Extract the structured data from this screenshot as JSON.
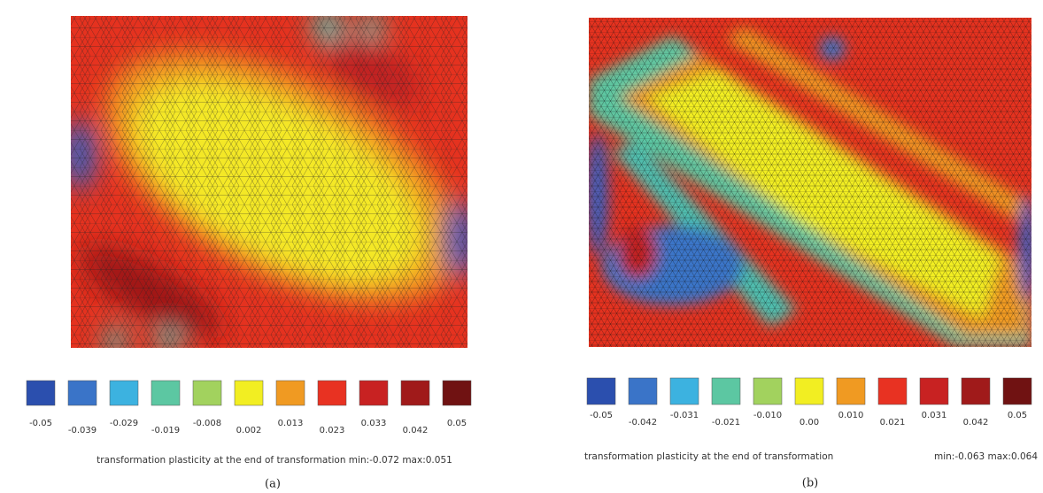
{
  "panels": [
    {
      "legend": [
        {
          "label": "-0.05",
          "color": "#2b4fae"
        },
        {
          "label": "-0.039",
          "color": "#3a74c8"
        },
        {
          "label": "-0.029",
          "color": "#3cb2e0"
        },
        {
          "label": "-0.019",
          "color": "#5cc7a2"
        },
        {
          "label": "-0.008",
          "color": "#a2d25e"
        },
        {
          "label": "0.002",
          "color": "#f2ee22"
        },
        {
          "label": "0.013",
          "color": "#f09a22"
        },
        {
          "label": "0.023",
          "color": "#e83222"
        },
        {
          "label": "0.033",
          "color": "#c82222"
        },
        {
          "label": "0.042",
          "color": "#a01a1a"
        },
        {
          "label": "0.05",
          "color": "#701212"
        }
      ],
      "caption": "transformation plasticity at the end of transformation  min:-0.072 max:0.051",
      "label": "(a)"
    },
    {
      "legend": [
        {
          "label": "-0.05",
          "color": "#2b4fae"
        },
        {
          "label": "-0.042",
          "color": "#3a74c8"
        },
        {
          "label": "-0.031",
          "color": "#3cb2e0"
        },
        {
          "label": "-0.021",
          "color": "#5cc7a2"
        },
        {
          "label": "-0.010",
          "color": "#a2d25e"
        },
        {
          "label": "0.00",
          "color": "#f2ee22"
        },
        {
          "label": "0.010",
          "color": "#f09a22"
        },
        {
          "label": "0.021",
          "color": "#e83222"
        },
        {
          "label": "0.031",
          "color": "#c82222"
        },
        {
          "label": "0.042",
          "color": "#a01a1a"
        },
        {
          "label": "0.05",
          "color": "#701212"
        }
      ],
      "caption": "transformation plasticity at the end of transformation",
      "range": "min:-0.063 max:0.064",
      "label": "(b)"
    }
  ]
}
